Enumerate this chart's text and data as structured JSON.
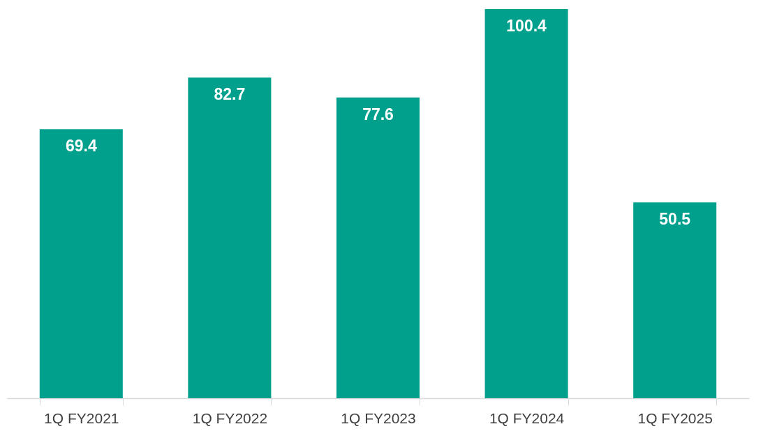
{
  "chart_data": {
    "type": "bar",
    "categories": [
      "1Q FY2021",
      "1Q FY2022",
      "1Q FY2023",
      "1Q FY2024",
      "1Q FY2025"
    ],
    "values": [
      69.4,
      82.7,
      77.6,
      100.4,
      50.5
    ],
    "color": "#00a08c",
    "data_labels": true
  }
}
